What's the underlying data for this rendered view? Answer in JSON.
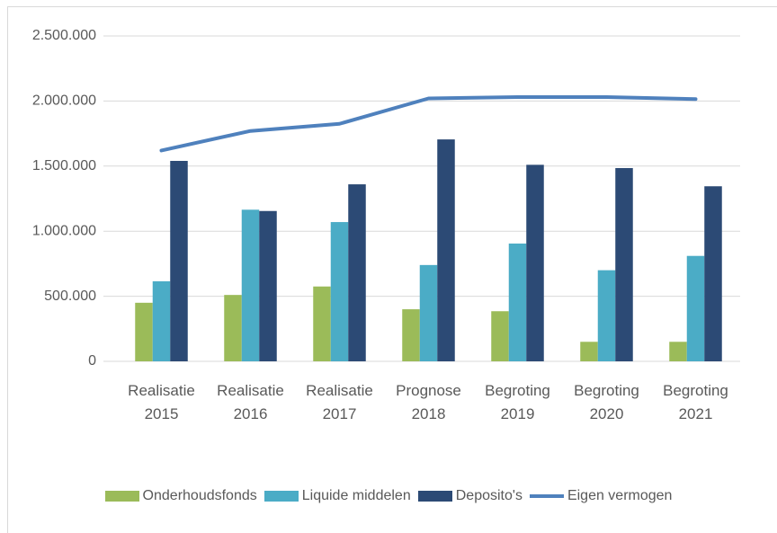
{
  "chart_data": {
    "type": "bar",
    "categories": [
      "Realisatie 2015",
      "Realisatie 2016",
      "Realisatie 2017",
      "Prognose 2018",
      "Begroting 2019",
      "Begroting 2020",
      "Begroting 2021"
    ],
    "series": [
      {
        "name": "Onderhoudsfonds",
        "color": "#9bbb59",
        "type": "bar",
        "values": [
          450000,
          510000,
          575000,
          400000,
          385000,
          150000,
          150000
        ]
      },
      {
        "name": "Liquide middelen",
        "color": "#4bacc6",
        "type": "bar",
        "values": [
          615000,
          1165000,
          1070000,
          740000,
          905000,
          700000,
          810000
        ]
      },
      {
        "name": "Deposito's",
        "color": "#2c4a75",
        "type": "bar",
        "values": [
          1540000,
          1155000,
          1360000,
          1705000,
          1510000,
          1485000,
          1345000
        ]
      },
      {
        "name": "Eigen vermogen",
        "color": "#4f81bd",
        "type": "line",
        "values": [
          1620000,
          1770000,
          1825000,
          2020000,
          2030000,
          2030000,
          2015000
        ]
      }
    ],
    "ylim": [
      0,
      2500000
    ],
    "yticks": [
      0,
      {
        "value": 500000,
        "label": "500.000"
      },
      {
        "value": 1000000,
        "label": "1.000.000"
      },
      {
        "value": 1500000,
        "label": "1.500.000"
      },
      {
        "value": 2000000,
        "label": "2.000.000"
      },
      {
        "value": 2500000,
        "label": "2.500.000"
      }
    ],
    "grid": true,
    "legend": "bottom"
  }
}
